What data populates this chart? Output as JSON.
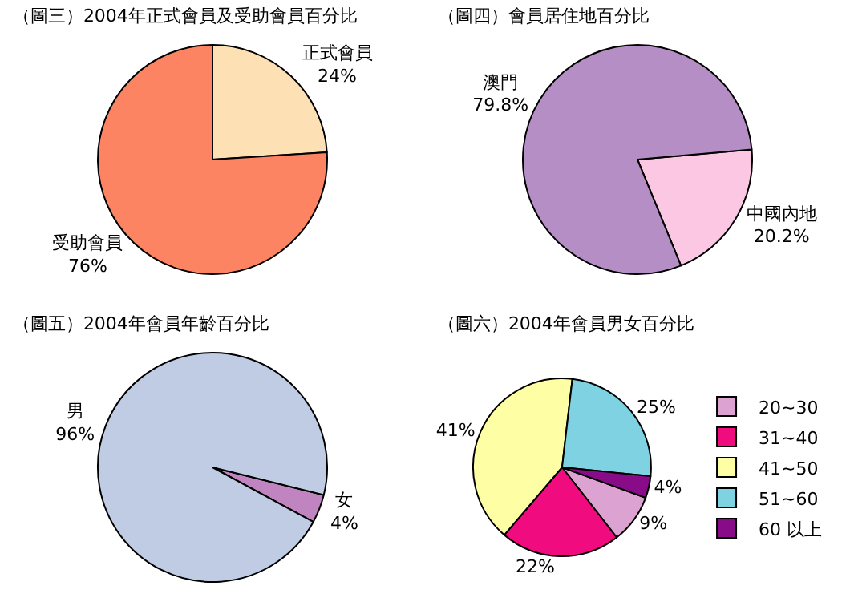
{
  "chart_data": [
    {
      "type": "pie",
      "title": "（圖三）2004年正式會員及受助會員百分比",
      "categories": [
        "正式會員",
        "受助會員"
      ],
      "values": [
        24,
        76
      ],
      "colors": [
        "#fde0b4",
        "#fd8462"
      ],
      "value_labels": [
        "24%",
        "76%"
      ],
      "legend": false
    },
    {
      "type": "pie",
      "title": "（圖四）會員居住地百分比",
      "categories": [
        "中國內地",
        "澳門"
      ],
      "values": [
        20.2,
        79.8
      ],
      "colors": [
        "#fcc7e2",
        "#b48ec4"
      ],
      "value_labels": [
        "20.2%",
        "79.8%"
      ],
      "legend": false
    },
    {
      "type": "pie",
      "title": "（圖五）2004年會員年齡百分比",
      "categories": [
        "女",
        "男"
      ],
      "values": [
        4,
        96
      ],
      "colors": [
        "#c084c0",
        "#c0cce4"
      ],
      "value_labels": [
        "4%",
        "96%"
      ],
      "legend": false
    },
    {
      "type": "pie",
      "title": "（圖六）2004年會員男女百分比",
      "categories": [
        "20~30",
        "31~40",
        "41~50",
        "51~60",
        "60 以上"
      ],
      "values": [
        9,
        22,
        41,
        25,
        4
      ],
      "colors": [
        "#dba2d2",
        "#f00c7e",
        "#fefea4",
        "#7ed2e2",
        "#880c88"
      ],
      "value_labels": [
        "9%",
        "22%",
        "41%",
        "25%",
        "4%"
      ],
      "legend": "right"
    }
  ]
}
